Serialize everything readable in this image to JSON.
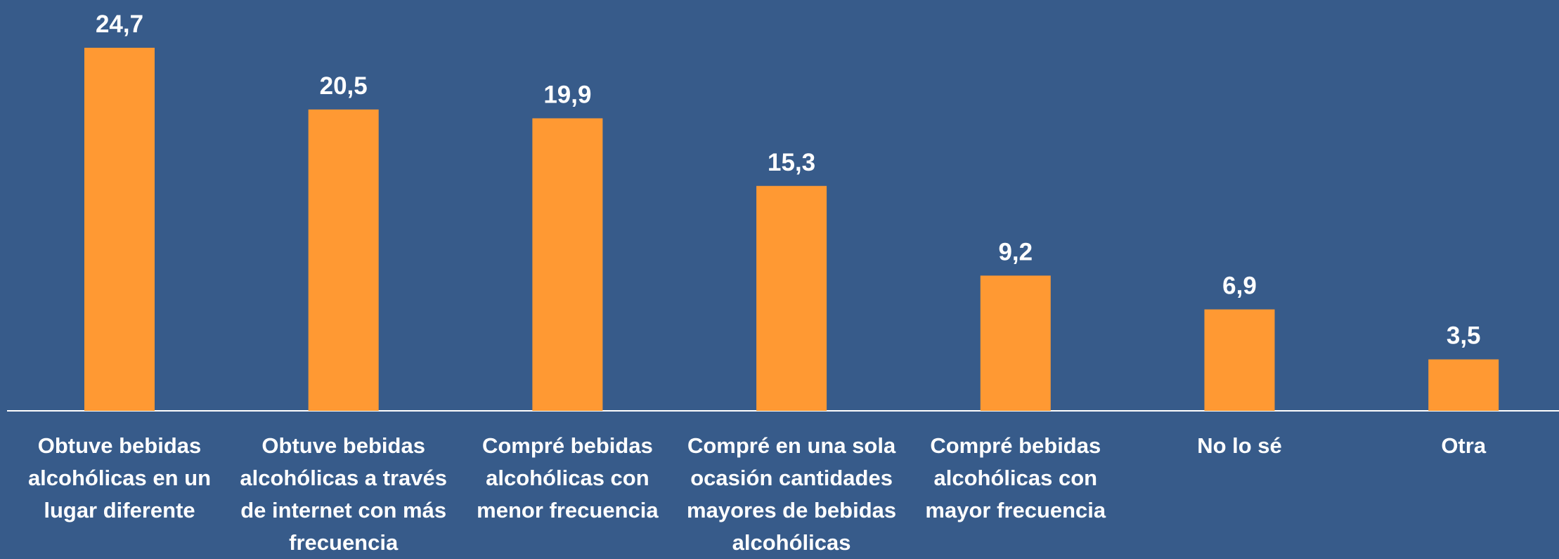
{
  "chart_data": {
    "type": "bar",
    "categories": [
      "Obtuve bebidas alcohólicas en un lugar diferente",
      "Obtuve bebidas alcohólicas a través de internet con más frecuencia",
      "Compré bebidas alcohólicas con menor frecuencia",
      "Compré en una sola ocasión cantidades mayores de bebidas alcohólicas",
      "Compré bebidas alcohólicas con mayor frecuencia",
      "No lo sé",
      "Otra"
    ],
    "values": [
      24.7,
      20.5,
      19.9,
      15.3,
      9.2,
      6.9,
      3.5
    ],
    "value_labels": [
      "24,7",
      "20,5",
      "19,9",
      "15,3",
      "9,2",
      "6,9",
      "3,5"
    ],
    "color": "#ff9933"
  }
}
